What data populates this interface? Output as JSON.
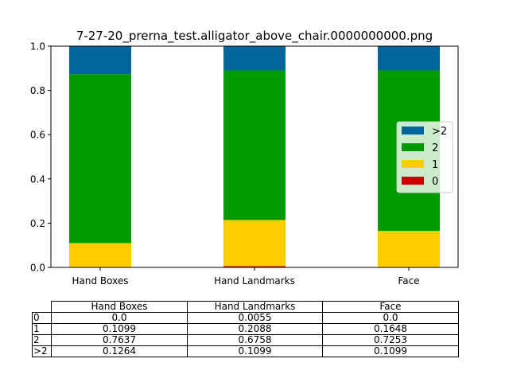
{
  "chart_data": {
    "type": "bar",
    "stacked": true,
    "title": "7-27-20_prerna_test.alligator_above_chair.0000000000.png",
    "categories": [
      "Hand Boxes",
      "Hand Landmarks",
      "Face"
    ],
    "series": [
      {
        "name": "0",
        "values": [
          0.0,
          0.0055,
          0.0
        ],
        "color": "#cc0000"
      },
      {
        "name": "1",
        "values": [
          0.1099,
          0.2088,
          0.1648
        ],
        "color": "#ffcc00"
      },
      {
        "name": "2",
        "values": [
          0.7637,
          0.6758,
          0.7253
        ],
        "color": "#009900"
      },
      {
        "name": ">2",
        "values": [
          0.1264,
          0.1099,
          0.1099
        ],
        "color": "#006699"
      }
    ],
    "ylim": [
      0.0,
      1.0
    ],
    "yticks": [
      "0.0",
      "0.2",
      "0.4",
      "0.6",
      "0.8",
      "1.0"
    ],
    "legend": {
      "placement": "center-right",
      "order": [
        ">2",
        "2",
        "1",
        "0"
      ]
    },
    "table": {
      "columns": [
        "Hand Boxes",
        "Hand Landmarks",
        "Face"
      ],
      "rows": [
        {
          "label": "0",
          "cells": [
            "0.0",
            "0.0055",
            "0.0"
          ]
        },
        {
          "label": "1",
          "cells": [
            "0.1099",
            "0.2088",
            "0.1648"
          ]
        },
        {
          "label": "2",
          "cells": [
            "0.7637",
            "0.6758",
            "0.7253"
          ]
        },
        {
          "label": ">2",
          "cells": [
            "0.1264",
            "0.1099",
            "0.1099"
          ]
        }
      ]
    }
  }
}
